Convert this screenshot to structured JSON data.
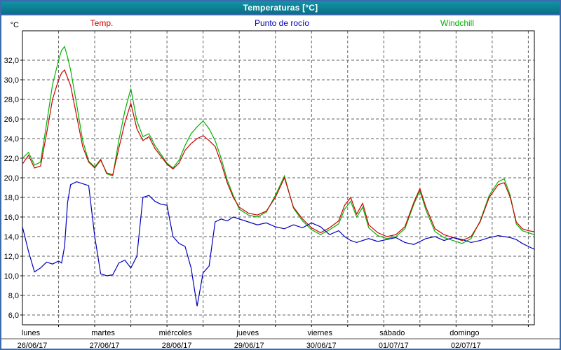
{
  "window": {
    "title": "Temperaturas [°C]"
  },
  "colors": {
    "title_bar_top": "#1391a8",
    "title_bar_bottom": "#0a7183",
    "frame_border": "#3a6bad",
    "grid": "#606060",
    "plot_border": "#000000"
  },
  "chart_data": {
    "type": "line",
    "title": "Temperaturas [°C]",
    "y_axis_label": "°C",
    "ylim": [
      5,
      35
    ],
    "y_ticks": [
      6,
      8,
      10,
      12,
      14,
      16,
      18,
      20,
      22,
      24,
      26,
      28,
      30,
      32
    ],
    "x_unit": "hours_from_monday_00",
    "x_range": [
      0,
      170
    ],
    "x_gridline_interval_hours": 12,
    "grid": "dashed",
    "legend_position": "top",
    "day_labels": [
      {
        "name": "lunes",
        "date": "26/06/17",
        "hour": 0
      },
      {
        "name": "martes",
        "date": "27/06/17",
        "hour": 24
      },
      {
        "name": "miércoles",
        "date": "28/06/17",
        "hour": 48
      },
      {
        "name": "jueves",
        "date": "29/06/17",
        "hour": 72
      },
      {
        "name": "viernes",
        "date": "30/06/17",
        "hour": 96
      },
      {
        "name": "sábado",
        "date": "01/07/17",
        "hour": 120
      },
      {
        "name": "domingo",
        "date": "02/07/17",
        "hour": 144
      }
    ],
    "x": [
      0,
      2,
      4,
      6,
      8,
      10,
      12,
      13,
      14,
      15,
      16,
      18,
      20,
      22,
      24,
      26,
      28,
      30,
      32,
      34,
      36,
      38,
      40,
      42,
      44,
      46,
      48,
      50,
      52,
      54,
      56,
      58,
      60,
      62,
      64,
      66,
      68,
      70,
      72,
      75,
      78,
      81,
      84,
      87,
      90,
      93,
      96,
      99,
      102,
      105,
      107,
      109,
      111,
      113,
      115,
      118,
      121,
      124,
      127,
      130,
      132,
      134,
      137,
      140,
      143,
      146,
      149,
      152,
      155,
      158,
      160,
      162,
      164,
      166,
      168,
      170
    ],
    "series": [
      {
        "name": "Temp.",
        "color": "#cc0000",
        "values": [
          21.4,
          22.3,
          21.0,
          21.2,
          24.5,
          28.0,
          30.0,
          30.7,
          31.0,
          30.2,
          29.4,
          26.3,
          23.2,
          21.6,
          21.0,
          21.8,
          20.5,
          20.3,
          23.0,
          25.6,
          27.6,
          25.0,
          23.8,
          24.2,
          23.0,
          22.2,
          21.4,
          20.9,
          21.5,
          22.8,
          23.5,
          24.0,
          24.3,
          23.8,
          23.2,
          21.5,
          19.5,
          18.0,
          17.0,
          16.4,
          16.2,
          16.6,
          18.0,
          20.0,
          17.0,
          15.8,
          14.9,
          14.4,
          14.9,
          15.6,
          17.2,
          18.0,
          16.3,
          17.4,
          15.2,
          14.4,
          14.0,
          14.2,
          15.0,
          17.5,
          18.9,
          17.0,
          14.8,
          14.2,
          13.9,
          13.6,
          14.0,
          15.5,
          18.0,
          19.3,
          19.5,
          18.0,
          15.5,
          14.8,
          14.6,
          14.5
        ]
      },
      {
        "name": "Punto de rocío",
        "color": "#0000bb",
        "values": [
          15.0,
          12.5,
          10.4,
          10.8,
          11.4,
          11.2,
          11.5,
          11.3,
          13.0,
          17.5,
          19.3,
          19.6,
          19.4,
          19.2,
          14.0,
          10.2,
          10.0,
          10.1,
          11.3,
          11.6,
          10.8,
          12.0,
          18.0,
          18.2,
          17.6,
          17.3,
          17.2,
          14.0,
          13.3,
          13.0,
          10.8,
          6.9,
          10.3,
          11.0,
          15.5,
          15.8,
          15.6,
          16.0,
          15.8,
          15.5,
          15.2,
          15.4,
          15.0,
          14.8,
          15.2,
          14.9,
          15.4,
          15.0,
          14.2,
          14.6,
          14.0,
          13.6,
          13.4,
          13.6,
          13.8,
          13.5,
          13.7,
          13.9,
          13.4,
          13.2,
          13.5,
          13.8,
          14.0,
          13.6,
          13.9,
          13.7,
          13.4,
          13.6,
          13.9,
          14.1,
          14.0,
          13.9,
          13.7,
          13.3,
          13.0,
          12.7
        ]
      },
      {
        "name": "Windchill",
        "color": "#00b400",
        "values": [
          22.0,
          22.6,
          21.3,
          21.6,
          25.5,
          29.5,
          32.0,
          33.0,
          33.4,
          32.3,
          31.0,
          27.5,
          23.8,
          21.7,
          21.1,
          21.9,
          20.4,
          20.2,
          23.8,
          26.8,
          29.1,
          25.8,
          24.2,
          24.5,
          23.3,
          22.4,
          21.5,
          21.0,
          21.8,
          23.3,
          24.5,
          25.2,
          25.8,
          25.0,
          23.8,
          22.0,
          19.8,
          18.2,
          16.8,
          16.2,
          16.0,
          16.5,
          18.2,
          20.2,
          16.9,
          15.6,
          14.7,
          14.2,
          14.7,
          15.3,
          16.8,
          17.6,
          16.0,
          17.0,
          14.9,
          14.1,
          13.8,
          14.0,
          14.8,
          17.3,
          18.7,
          16.7,
          14.5,
          13.9,
          13.6,
          13.3,
          13.8,
          15.6,
          18.2,
          19.6,
          19.9,
          18.2,
          15.3,
          14.6,
          14.4,
          14.2
        ]
      }
    ]
  }
}
